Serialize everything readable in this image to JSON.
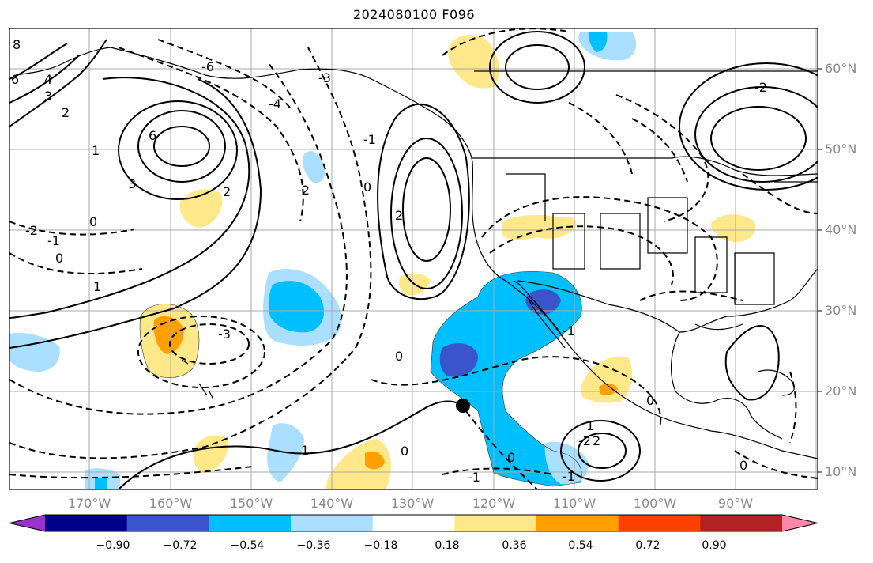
{
  "title": "2024080100 F096",
  "lat_labels": [
    "60°N",
    "50°N",
    "40°N",
    "30°N",
    "20°N",
    "10°N"
  ],
  "lon_labels": [
    "170°W",
    "160°W",
    "150°W",
    "140°W",
    "130°W",
    "120°W",
    "110°W",
    "100°W",
    "90°W"
  ],
  "colorbar": {
    "labels": [
      "−0.90",
      "−0.72",
      "−0.54",
      "−0.36",
      "−0.18",
      "0.18",
      "0.36",
      "0.54",
      "0.72",
      "0.90"
    ],
    "colors": [
      "#9933cc",
      "#000088",
      "#3a55cc",
      "#00bfff",
      "#aadfff",
      "#ffffff",
      "#ffe88a",
      "#ffa000",
      "#ff4000",
      "#b22222",
      "#ff88aa"
    ]
  },
  "contour_labels": [
    "8",
    "6",
    "4",
    "3",
    "2",
    "1",
    "0",
    "-1",
    "-2",
    "-3",
    "-4",
    "-6",
    "0",
    "1",
    "2",
    "3",
    "6",
    "0",
    "-1",
    "-2",
    "-3",
    "0",
    "0",
    "-1",
    "1",
    "2",
    "0",
    "-1",
    "-2",
    "0",
    "1",
    "2",
    "-2",
    "-1",
    "0"
  ],
  "marker": "black-dot"
}
